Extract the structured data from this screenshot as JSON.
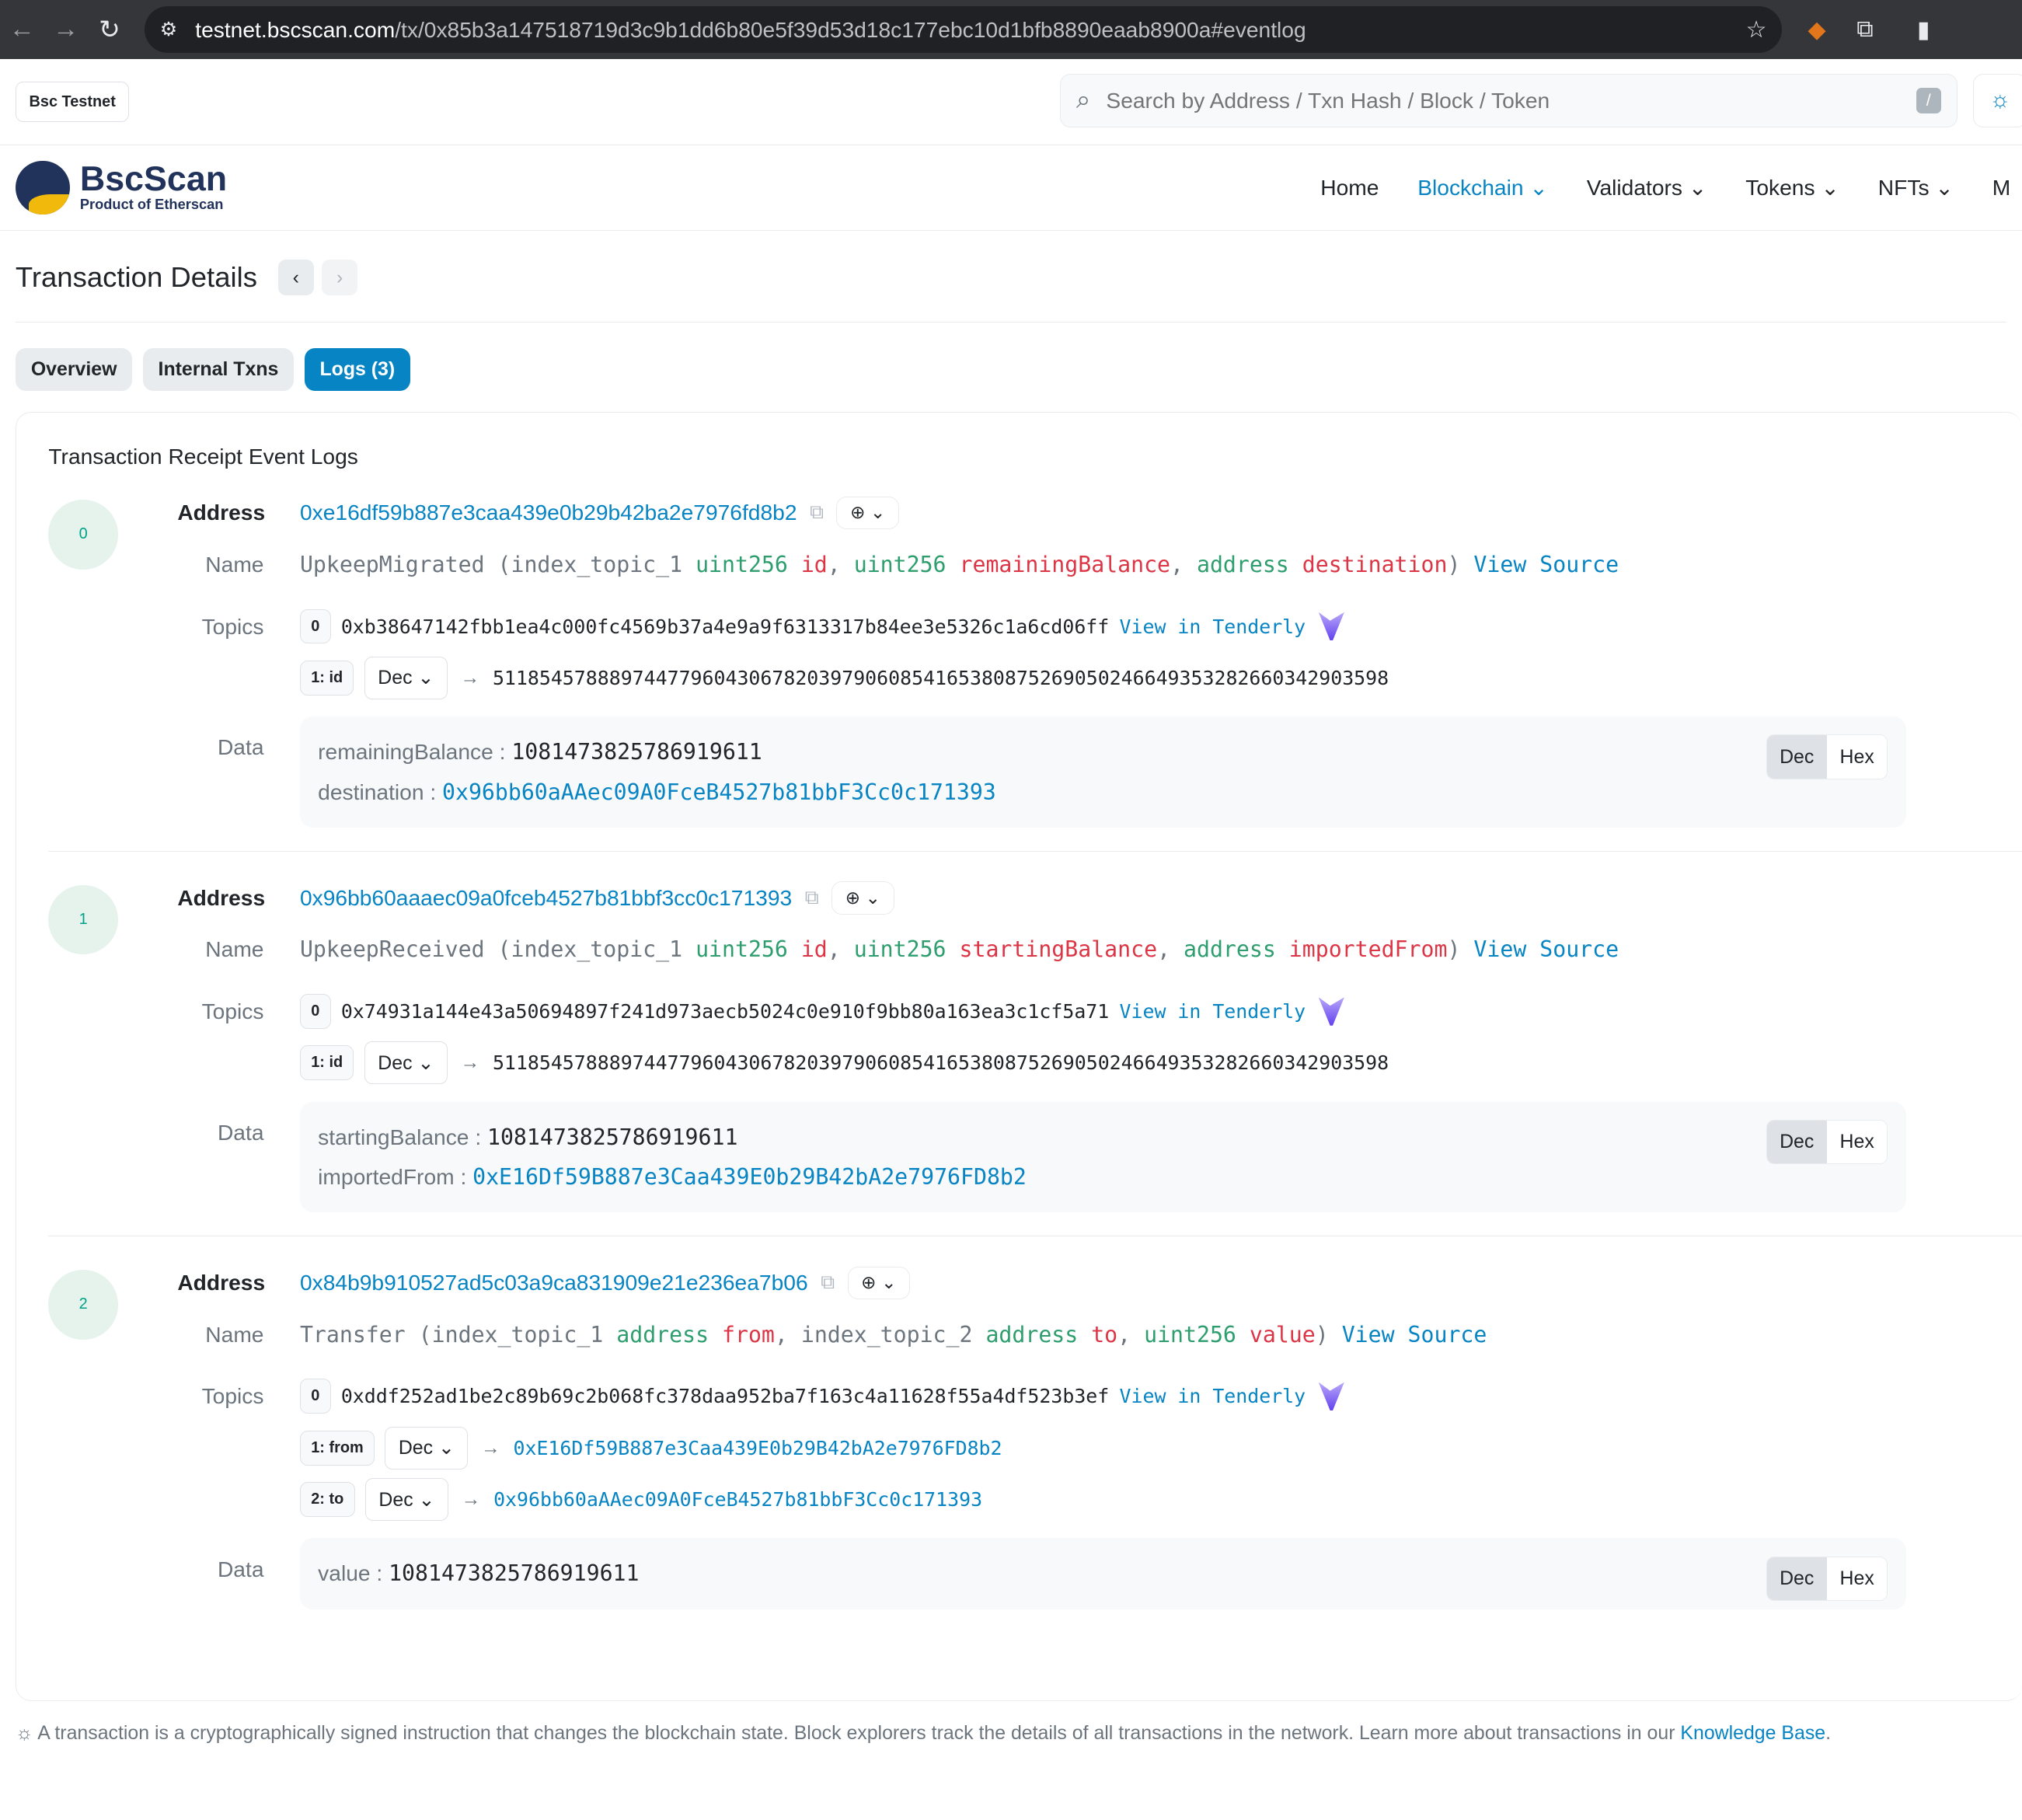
{
  "browser": {
    "url_host": "testnet.bscscan.com",
    "url_path": "/tx/0x85b3a147518719d3c9b1dd6b80e5f39d53d18c177ebc10d1bfb8890eaab8900a#eventlog"
  },
  "topbar": {
    "network": "Bsc Testnet",
    "search_placeholder": "Search by Address / Txn Hash / Block / Token",
    "slash": "/"
  },
  "brand": {
    "name": "BscScan",
    "tagline": "Product of Etherscan"
  },
  "menu": [
    {
      "label": "Home"
    },
    {
      "label": "Blockchain ⌄"
    },
    {
      "label": "Validators ⌄"
    },
    {
      "label": "Tokens ⌄"
    },
    {
      "label": "NFTs ⌄"
    },
    {
      "label": "M"
    }
  ],
  "page": {
    "title": "Transaction Details"
  },
  "tabs": [
    {
      "label": "Overview"
    },
    {
      "label": "Internal Txns"
    },
    {
      "label": "Logs (3)"
    }
  ],
  "section_title": "Transaction Receipt Event Logs",
  "labels": {
    "address": "Address",
    "name": "Name",
    "topics": "Topics",
    "data": "Data",
    "view_source": "View Source",
    "view_tenderly": "View in Tenderly",
    "dec": "Dec",
    "hex": "Hex"
  },
  "logs": [
    {
      "index": "0",
      "address": "0xe16df59b887e3caa439e0b29b42ba2e7976fd8b2",
      "name_parts": [
        [
          "",
          "UpkeepMigrated (index_topic_1 "
        ],
        [
          "g",
          "uint256"
        ],
        [
          "r",
          " id"
        ],
        [
          "",
          ", "
        ],
        [
          "g",
          "uint256"
        ],
        [
          "r",
          " remainingBalance"
        ],
        [
          "",
          ", "
        ],
        [
          "g",
          "address"
        ],
        [
          "r",
          " destination"
        ],
        [
          "",
          ")"
        ]
      ],
      "topic0": "0xb38647142fbb1ea4c000fc4569b37a4e9a9f6313317b84ee3e5326c1a6cd06ff",
      "topics": [
        {
          "label": "1: id",
          "value": "51185457888974477960430678203979060854165380875269050246649353282660342903598",
          "link": false
        }
      ],
      "data": [
        {
          "k": "remainingBalance",
          "v": "1081473825786919611",
          "link": false
        },
        {
          "k": "destination",
          "v": "0x96bb60aAAec09A0FceB4527b81bbF3Cc0c171393",
          "link": true
        }
      ]
    },
    {
      "index": "1",
      "address": "0x96bb60aaaec09a0fceb4527b81bbf3cc0c171393",
      "name_parts": [
        [
          "",
          "UpkeepReceived (index_topic_1 "
        ],
        [
          "g",
          "uint256"
        ],
        [
          "r",
          " id"
        ],
        [
          "",
          ", "
        ],
        [
          "g",
          "uint256"
        ],
        [
          "r",
          " startingBalance"
        ],
        [
          "",
          ", "
        ],
        [
          "g",
          "address"
        ],
        [
          "r",
          " importedFrom"
        ],
        [
          "",
          ")"
        ]
      ],
      "topic0": "0x74931a144e43a50694897f241d973aecb5024c0e910f9bb80a163ea3c1cf5a71",
      "topics": [
        {
          "label": "1: id",
          "value": "51185457888974477960430678203979060854165380875269050246649353282660342903598",
          "link": false
        }
      ],
      "data": [
        {
          "k": "startingBalance",
          "v": "1081473825786919611",
          "link": false
        },
        {
          "k": "importedFrom",
          "v": "0xE16Df59B887e3Caa439E0b29B42bA2e7976FD8b2",
          "link": true
        }
      ]
    },
    {
      "index": "2",
      "address": "0x84b9b910527ad5c03a9ca831909e21e236ea7b06",
      "name_parts": [
        [
          "",
          "Transfer (index_topic_1 "
        ],
        [
          "g",
          "address"
        ],
        [
          "r",
          " from"
        ],
        [
          "",
          ", index_topic_2 "
        ],
        [
          "g",
          "address"
        ],
        [
          "r",
          " to"
        ],
        [
          "",
          ", "
        ],
        [
          "g",
          "uint256"
        ],
        [
          "r",
          " value"
        ],
        [
          "",
          ")"
        ]
      ],
      "topic0": "0xddf252ad1be2c89b69c2b068fc378daa952ba7f163c4a11628f55a4df523b3ef",
      "topics": [
        {
          "label": "1: from",
          "value": "0xE16Df59B887e3Caa439E0b29B42bA2e7976FD8b2",
          "link": true
        },
        {
          "label": "2: to",
          "value": "0x96bb60aAAec09A0FceB4527b81bbF3Cc0c171393",
          "link": true
        }
      ],
      "data": [
        {
          "k": "value",
          "v": "1081473825786919611",
          "link": false
        }
      ]
    }
  ],
  "footer": {
    "text": "A transaction is a cryptographically signed instruction that changes the blockchain state. Block explorers track the details of all transactions in the network. Learn more about transactions in our ",
    "link": "Knowledge Base",
    "end": "."
  },
  "colors": {
    "link": "#0784c3",
    "type": "#2e9e6e",
    "param": "#dc3545"
  }
}
